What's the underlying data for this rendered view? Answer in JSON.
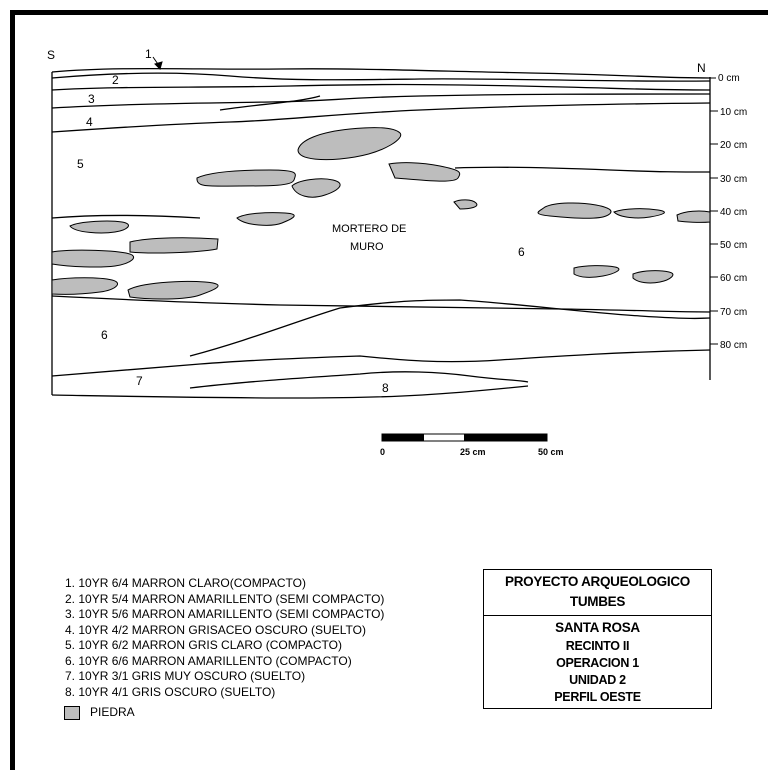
{
  "profile": {
    "orient_south": "S",
    "orient_north": "N",
    "layer_labels": [
      "1",
      "2",
      "3",
      "4",
      "5",
      "6",
      "6",
      "7",
      "8"
    ],
    "depth_ticks": [
      "0 cm",
      "10 cm",
      "20 cm",
      "30 cm",
      "40 cm",
      "50 cm",
      "60 cm",
      "70 cm",
      "80 cm"
    ],
    "mortero_line1": "MORTERO DE",
    "mortero_line2": "MURO",
    "stone_color": "#bdbdbd"
  },
  "scale_bar": {
    "labels": [
      "0",
      "25 cm",
      "50 cm"
    ]
  },
  "legend": {
    "items": [
      "1. 10YR 6/4  MARRON CLARO(COMPACTO)",
      "2. 10YR 5/4  MARRON AMARILLENTO (SEMI COMPACTO)",
      "3. 10YR 5/6  MARRON AMARILLENTO (SEMI COMPACTO)",
      "4. 10YR 4/2  MARRON GRISACEO OSCURO (SUELTO)",
      "5. 10YR 6/2  MARRON GRIS CLARO (COMPACTO)",
      "6. 10YR 6/6  MARRON AMARILLENTO (COMPACTO)",
      "7. 10YR 3/1  GRIS MUY OSCURO (SUELTO)",
      "8. 10YR 4/1  GRIS OSCURO (SUELTO)"
    ],
    "piedra": "PIEDRA"
  },
  "title_block": {
    "project_line1": "PROYECTO ARQUEOLOGICO",
    "project_line2": "TUMBES",
    "site": "SANTA ROSA",
    "lines": [
      "RECINTO II",
      "OPERACION 1",
      "UNIDAD 2",
      "PERFIL OESTE"
    ]
  }
}
